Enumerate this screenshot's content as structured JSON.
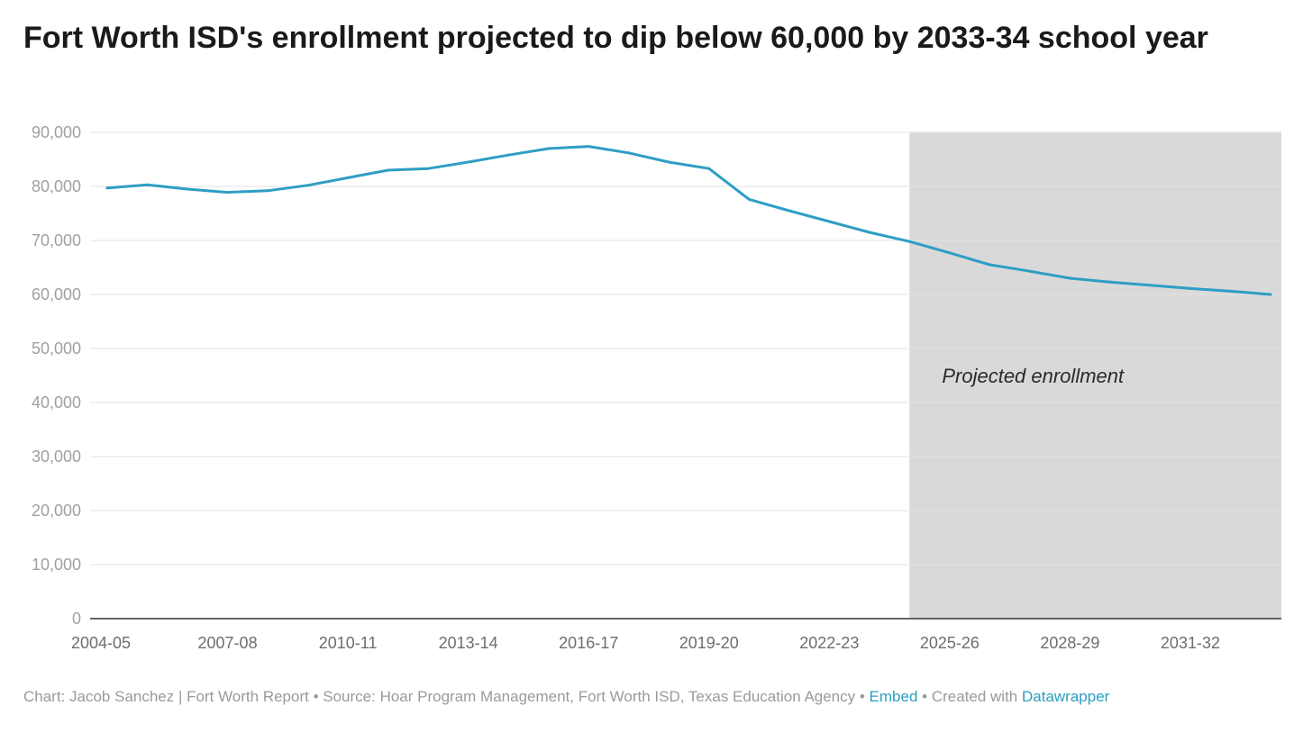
{
  "header": {
    "title": "Fort Worth ISD's enrollment projected to dip below 60,000 by 2033-34 school year"
  },
  "footer": {
    "chart_credit": "Chart: Jacob Sanchez | Fort Worth Report",
    "separator": " • ",
    "source": "Source: Hoar Program Management, Fort Worth ISD, Texas Education Agency",
    "embed_label": "Embed",
    "created_with": "Created with",
    "datawrapper_label": "Datawrapper"
  },
  "colors": {
    "line": "#2e9ec4",
    "projection_band": "#d9d9d9",
    "grid": "#e3e3e3",
    "axis": "#333333",
    "link": "#2a9fc0"
  },
  "chart_data": {
    "type": "line",
    "title": "Fort Worth ISD's enrollment projected to dip below 60,000 by 2033-34 school year",
    "xlabel": "",
    "ylabel": "",
    "ylim": [
      0,
      90000
    ],
    "y_ticks": [
      0,
      10000,
      20000,
      30000,
      40000,
      50000,
      60000,
      70000,
      80000,
      90000
    ],
    "y_tick_labels": [
      "0",
      "10,000",
      "20,000",
      "30,000",
      "40,000",
      "50,000",
      "60,000",
      "70,000",
      "80,000",
      "90,000"
    ],
    "x_tick_labels": [
      "2004-05",
      "2007-08",
      "2010-11",
      "2013-14",
      "2016-17",
      "2019-20",
      "2022-23",
      "2025-26",
      "2028-29",
      "2031-32"
    ],
    "categories": [
      "2004-05",
      "2005-06",
      "2006-07",
      "2007-08",
      "2008-09",
      "2009-10",
      "2010-11",
      "2011-12",
      "2012-13",
      "2013-14",
      "2014-15",
      "2015-16",
      "2016-17",
      "2017-18",
      "2018-19",
      "2019-20",
      "2020-21",
      "2021-22",
      "2022-23",
      "2023-24",
      "2024-25",
      "2025-26",
      "2026-27",
      "2027-28",
      "2028-29",
      "2029-30",
      "2030-31",
      "2031-32",
      "2032-33",
      "2033-34"
    ],
    "grid": true,
    "series": [
      {
        "values": [
          79700,
          80300,
          79500,
          78900,
          79200,
          80200,
          81600,
          83000,
          83300,
          84500,
          85800,
          87000,
          87400,
          86200,
          84500,
          83300,
          77600,
          75500,
          73500,
          71500,
          69800,
          67700,
          65500,
          64300,
          63000,
          62300,
          61700,
          61100,
          60600,
          60000
        ]
      }
    ],
    "shaded_region": {
      "from": "2024-25",
      "to": "2033-34",
      "label": "Projected enrollment"
    }
  }
}
